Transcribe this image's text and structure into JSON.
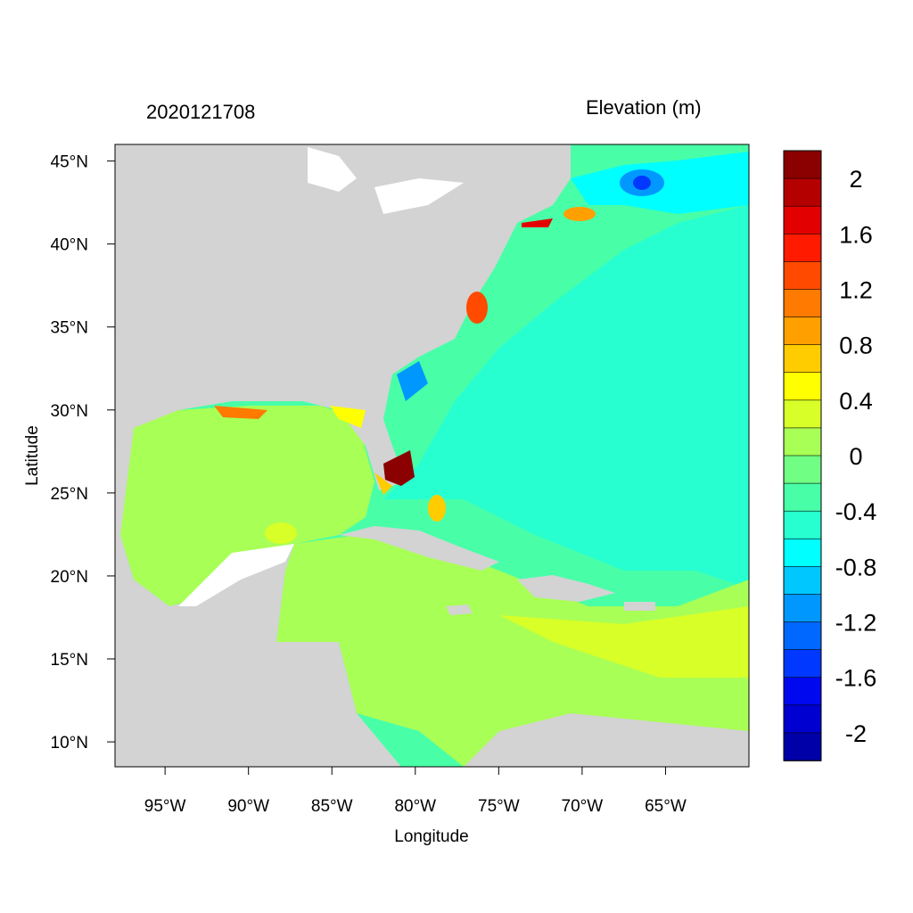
{
  "header": {
    "timestamp": "2020121708",
    "variable_label": "Elevation (m)"
  },
  "axes": {
    "xlabel": "Longitude",
    "ylabel": "Latitude",
    "x_ticks": [
      "95°W",
      "90°W",
      "85°W",
      "80°W",
      "75°W",
      "70°W",
      "65°W"
    ],
    "y_ticks": [
      "45°N",
      "40°N",
      "35°N",
      "30°N",
      "25°N",
      "20°N",
      "15°N",
      "10°N"
    ],
    "lon_range": [
      -98,
      -60
    ],
    "lat_range": [
      8.5,
      46
    ]
  },
  "colorbar": {
    "colors": [
      "#8b0000",
      "#b50000",
      "#e30000",
      "#ff1a00",
      "#ff4a00",
      "#ff7a00",
      "#ffa000",
      "#ffcc00",
      "#ffff00",
      "#d8ff28",
      "#a8ff56",
      "#70ff84",
      "#48ffa8",
      "#28ffd0",
      "#00ffff",
      "#00c8ff",
      "#0098ff",
      "#0068ff",
      "#0038ff",
      "#0008f0",
      "#0000d0",
      "#0000a8"
    ],
    "labels": [
      "2",
      "1.6",
      "1.2",
      "0.8",
      "0.4",
      "0",
      "-0.4",
      "-0.8",
      "-1.2",
      "-1.6",
      "-2"
    ]
  },
  "legend_colors": {
    "land": "#d3d3d3",
    "water_lakes": "#ffffff",
    "gulf": "#a8ff56",
    "atlantic": "#48ffa8",
    "shelf": "#28ffd0"
  }
}
